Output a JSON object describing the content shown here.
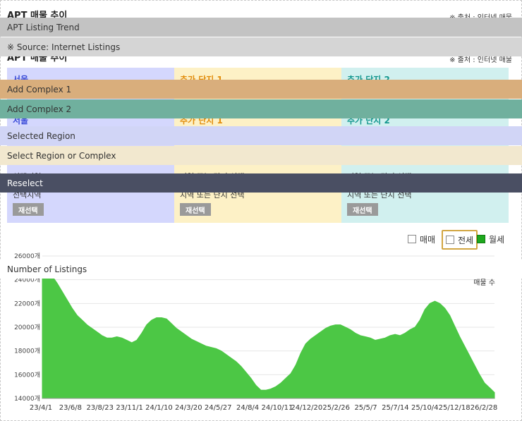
{
  "header": {
    "title": "APT 매물 추이",
    "source": "※ 출처 : 인터넷 매물"
  },
  "overlays": [
    {
      "text": "APT Listing Trend",
      "color": "#c3c3c3"
    },
    {
      "text": "※ Source: Internet Listings",
      "color": "#d5d5d5"
    },
    {
      "text": "Add Complex 1",
      "color": "#d9ae7c"
    },
    {
      "text": "Add Complex 2",
      "color": "#70b09e"
    },
    {
      "text": "Selected Region",
      "color": "#d1d5f6"
    },
    {
      "text": "Select Region or Complex",
      "color": "#f2e8cf"
    },
    {
      "text": "Reselect",
      "color": "#4a4f63",
      "text_color": "#ffffff"
    },
    {
      "text": "Number of Listings",
      "color": "#ffffff"
    }
  ],
  "panels": [
    {
      "title": "서울",
      "selected_label": "선택지역",
      "reselect": "재선택"
    },
    {
      "title": "추가 단지 1",
      "selected_label": "지역 또는 단지 선택",
      "reselect": "재선택"
    },
    {
      "title": "추가 단지 2",
      "selected_label": "지역 또는 단지 선택",
      "reselect": "재선택"
    }
  ],
  "legend": {
    "sale": "매매",
    "jeonse": "전세",
    "monthly": "월세"
  },
  "chart_data": {
    "type": "area",
    "unit_label": "매물 수",
    "ylim": [
      14000,
      26000
    ],
    "yticks": [
      "26000개",
      "24000개",
      "22000개",
      "20000개",
      "18000개",
      "16000개",
      "14000개"
    ],
    "xticks": [
      "23/4/1",
      "23/6/8",
      "23/8/23",
      "23/11/1",
      "24/1/10",
      "24/3/20",
      "24/5/27",
      "24/8/4",
      "24/10/11",
      "24/12/20",
      "25/2/26",
      "25/5/7",
      "25/7/14",
      "25/10/4",
      "25/12/18",
      "26/2/28"
    ],
    "color": "#4cc745",
    "series": [
      {
        "values": [
          25200,
          24900,
          24300,
          23700,
          23000,
          22300,
          21600,
          21000,
          20600,
          20200,
          19900,
          19600,
          19300,
          19100,
          19100,
          19200,
          19100,
          18900,
          18700,
          18900,
          19500,
          20200,
          20600,
          20800,
          20800,
          20700,
          20300,
          19900,
          19600,
          19300,
          19000,
          18800,
          18600,
          18400,
          18300,
          18200,
          18000,
          17700,
          17400,
          17100,
          16700,
          16200,
          15700,
          15100,
          14700,
          14700,
          14800,
          15000,
          15300,
          15700,
          16100,
          16800,
          17800,
          18600,
          19000,
          19300,
          19600,
          19900,
          20100,
          20200,
          20200,
          20000,
          19800,
          19500,
          19300,
          19200,
          19100,
          18900,
          19000,
          19100,
          19300,
          19400,
          19300,
          19500,
          19800,
          20000,
          20600,
          21500,
          22000,
          22200,
          22000,
          21600,
          21000,
          20100,
          19200,
          18400,
          17600,
          16800,
          16000,
          15300,
          14900,
          14500
        ]
      }
    ]
  }
}
